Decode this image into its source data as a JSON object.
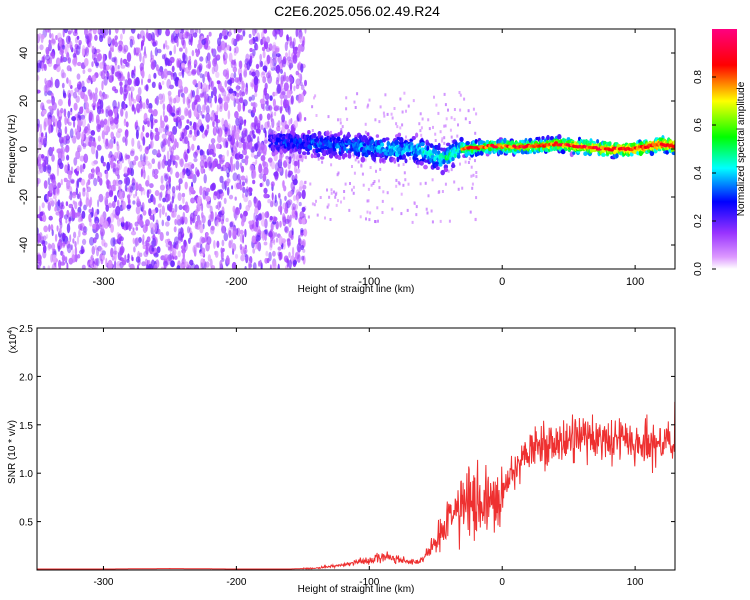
{
  "title": "C2E6.2025.056.02.49.R24",
  "chart_data": [
    {
      "type": "heatmap",
      "xlabel": "Height of straight line (km)",
      "ylabel": "Frequency (Hz)",
      "xlim": [
        -350,
        130
      ],
      "ylim": [
        -50,
        50
      ],
      "xticks": [
        -300,
        -200,
        -100,
        0,
        100
      ],
      "yticks": [
        -40,
        -20,
        0,
        20,
        40
      ],
      "colorbar": {
        "label": "Normalized spectral amplitude",
        "range": [
          0,
          1
        ],
        "ticks": [
          "0.0",
          "0.2",
          "0.4",
          "0.6",
          "0.8"
        ],
        "colors": [
          "#ffffff",
          "#cc66ff",
          "#0000ff",
          "#00ffff",
          "#00ff00",
          "#ffff00",
          "#ff0000",
          "#ff00aa"
        ]
      },
      "regions": [
        {
          "x_range": [
            -350,
            -148
          ],
          "y_range": [
            -50,
            50
          ],
          "amplitude": "0.1-0.25"
        },
        {
          "x_range": [
            -175,
            -25
          ],
          "y_range": [
            -8,
            8
          ],
          "amplitude": "0.2-0.5"
        },
        {
          "x_range": [
            -30,
            130
          ],
          "y_range": [
            -4,
            6
          ],
          "amplitude": "0.5-1.0"
        }
      ],
      "ridge": [
        {
          "x": -170,
          "y": 3
        },
        {
          "x": -140,
          "y": 2
        },
        {
          "x": -110,
          "y": 1
        },
        {
          "x": -80,
          "y": 0
        },
        {
          "x": -60,
          "y": -1
        },
        {
          "x": -45,
          "y": -4
        },
        {
          "x": -30,
          "y": 0
        },
        {
          "x": -10,
          "y": 1
        },
        {
          "x": 0,
          "y": 1
        },
        {
          "x": 20,
          "y": 1
        },
        {
          "x": 40,
          "y": 2
        },
        {
          "x": 60,
          "y": 1
        },
        {
          "x": 80,
          "y": 0
        },
        {
          "x": 100,
          "y": 0
        },
        {
          "x": 120,
          "y": 2
        },
        {
          "x": 130,
          "y": 1
        }
      ]
    },
    {
      "type": "line",
      "xlabel": "Height of straight line (km)",
      "ylabel": "SNR (10 * v/v)",
      "y_multiplier": "(x10",
      "y_multiplier_exp": "4",
      "y_multiplier_close": ")",
      "xlim": [
        -350,
        130
      ],
      "ylim": [
        0,
        2.5
      ],
      "xticks": [
        -300,
        -200,
        -100,
        0,
        100
      ],
      "yticks": [
        0.5,
        1.0,
        1.5,
        2.0,
        2.5
      ],
      "yticklabels": [
        "0.5",
        "1.0",
        "1.5",
        "2.0",
        "2.5"
      ],
      "color": "#ee3030",
      "series": [
        {
          "x": [
            -350,
            -300,
            -250,
            -200,
            -160,
            -140,
            -120,
            -100,
            -90,
            -80,
            -70,
            -60,
            -50,
            -40,
            -30,
            -20,
            -10,
            0,
            10,
            20,
            30,
            40,
            50,
            60,
            70,
            80,
            90,
            100,
            110,
            120,
            125,
            130
          ],
          "y": [
            0.01,
            0.01,
            0.015,
            0.01,
            0.01,
            0.02,
            0.05,
            0.1,
            0.15,
            0.12,
            0.08,
            0.1,
            0.3,
            0.55,
            0.7,
            0.65,
            0.7,
            0.8,
            1.05,
            1.2,
            1.3,
            1.35,
            1.35,
            1.35,
            1.38,
            1.35,
            1.35,
            1.3,
            1.3,
            1.25,
            1.4,
            1.2
          ]
        }
      ]
    }
  ]
}
